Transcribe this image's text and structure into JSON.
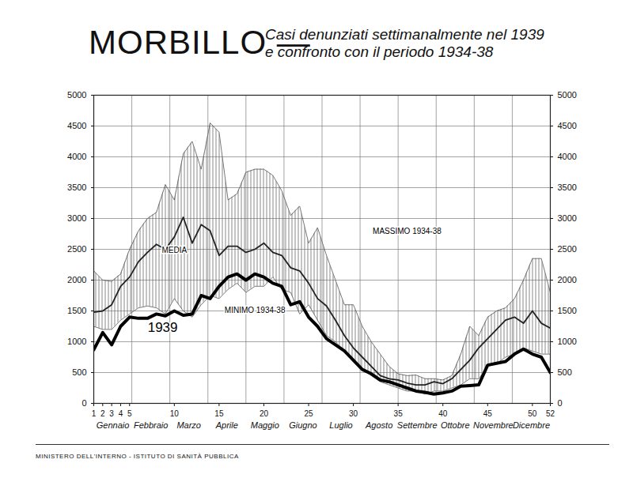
{
  "chart_data": {
    "type": "line",
    "title": "MORBILLO —",
    "subtitle": [
      "Casi denunziati settimanalmente nel 1939",
      "e confronto con il periodo 1934-38"
    ],
    "footer": "MINISTERO DELL'INTERNO - ISTITUTO DI SANITÀ PUBBLICA",
    "x": [
      1,
      2,
      3,
      4,
      5,
      6,
      7,
      8,
      9,
      10,
      11,
      12,
      13,
      14,
      15,
      16,
      17,
      18,
      19,
      20,
      21,
      22,
      23,
      24,
      25,
      26,
      27,
      28,
      29,
      30,
      31,
      32,
      33,
      34,
      35,
      36,
      37,
      38,
      39,
      40,
      41,
      42,
      43,
      44,
      45,
      46,
      47,
      48,
      49,
      50,
      51,
      52
    ],
    "xlim": [
      1,
      52
    ],
    "xticks": [
      1,
      2,
      3,
      4,
      5,
      10,
      15,
      20,
      25,
      30,
      35,
      40,
      45,
      50,
      52
    ],
    "months": [
      "Gennaio",
      "Febbraio",
      "Marzo",
      "Aprile",
      "Maggio",
      "Giugno",
      "Luglio",
      "Agosto",
      "Settembre",
      "Ottobre",
      "Novembre",
      "Dicembre"
    ],
    "month_bounds": [
      1,
      5.25,
      9.5,
      13.75,
      18,
      22.25,
      26.5,
      30.75,
      35,
      39.25,
      43.5,
      47.75,
      52
    ],
    "ylim": [
      0,
      5000
    ],
    "yticks": [
      0,
      500,
      1000,
      1500,
      2000,
      2500,
      3000,
      3500,
      4000,
      4500,
      5000
    ],
    "y2lim": [
      0,
      5000
    ],
    "y2ticks": [
      0,
      500,
      1000,
      1500,
      2000,
      2500,
      3000,
      3500,
      4000,
      4500,
      5000
    ],
    "grid": true,
    "series": [
      {
        "name": "MASSIMO 1934-38",
        "color": "#555555",
        "values": [
          2150,
          2000,
          1980,
          2100,
          2500,
          2800,
          3000,
          3100,
          3550,
          3300,
          4050,
          4250,
          3800,
          4550,
          4400,
          3300,
          3400,
          3750,
          3800,
          3800,
          3700,
          3450,
          3050,
          3200,
          2600,
          2850,
          2400,
          2000,
          1600,
          1600,
          1250,
          1000,
          800,
          600,
          480,
          450,
          460,
          400,
          400,
          380,
          450,
          800,
          1250,
          1100,
          1400,
          1500,
          1550,
          1700,
          2000,
          2350,
          2350,
          1800
        ]
      },
      {
        "name": "MEDIA",
        "color": "#222222",
        "values": [
          1480,
          1500,
          1600,
          1900,
          2050,
          2300,
          2450,
          2580,
          2500,
          2700,
          3020,
          2600,
          2900,
          2800,
          2400,
          2550,
          2550,
          2450,
          2500,
          2600,
          2450,
          2400,
          2200,
          2150,
          1950,
          1700,
          1580,
          1350,
          1100,
          900,
          750,
          600,
          450,
          400,
          380,
          330,
          300,
          300,
          350,
          320,
          400,
          550,
          700,
          900,
          1050,
          1200,
          1350,
          1400,
          1300,
          1500,
          1300,
          1220
        ]
      },
      {
        "name": "MINIMO 1934-38",
        "color": "#555555",
        "values": [
          1250,
          1200,
          1200,
          1350,
          1450,
          1550,
          1580,
          1550,
          1450,
          1700,
          1500,
          1400,
          1600,
          1750,
          1700,
          1850,
          1950,
          1800,
          1900,
          1900,
          2050,
          1850,
          1800,
          1450,
          1600,
          1350,
          1100,
          1000,
          850,
          700,
          550,
          450,
          350,
          300,
          250,
          200,
          200,
          150,
          200,
          200,
          250,
          300,
          400,
          400,
          600,
          650,
          750,
          800,
          900,
          850,
          800,
          800
        ]
      },
      {
        "name": "1939",
        "color": "#000000",
        "values": [
          870,
          1150,
          950,
          1250,
          1400,
          1380,
          1380,
          1450,
          1420,
          1500,
          1430,
          1450,
          1750,
          1700,
          1900,
          2050,
          2100,
          2000,
          2100,
          2050,
          1950,
          1900,
          1600,
          1650,
          1400,
          1250,
          1050,
          950,
          850,
          700,
          550,
          480,
          380,
          350,
          300,
          250,
          200,
          180,
          150,
          170,
          200,
          280,
          290,
          300,
          620,
          650,
          680,
          800,
          880,
          800,
          750,
          500
        ]
      }
    ],
    "annotations": [
      {
        "text": "MEDIA",
        "x": 10,
        "y": 2480
      },
      {
        "text": "MASSIMO 1934-38",
        "x": 36,
        "y": 2790
      },
      {
        "text": "MINIMO 1934-38",
        "x": 19,
        "y": 1510
      },
      {
        "text": "1939",
        "x": 8.7,
        "y": 1230
      }
    ]
  }
}
